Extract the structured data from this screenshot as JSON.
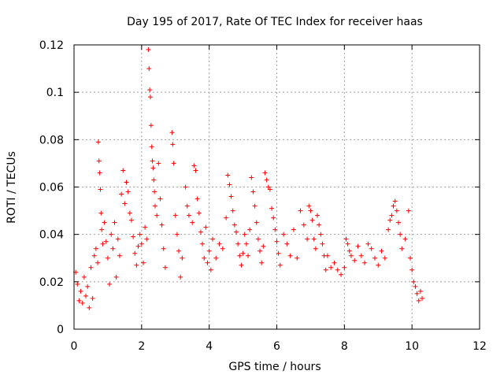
{
  "chart_data": {
    "type": "scatter",
    "title": "Day 195 of 2017, Rate Of TEC Index for receiver haas",
    "xlabel": "GPS time / hours",
    "ylabel": "ROTI / TECUs",
    "xlim": [
      0,
      12
    ],
    "ylim": [
      0,
      0.12
    ],
    "xticks": [
      0,
      2,
      4,
      6,
      8,
      10,
      12
    ],
    "yticks": [
      0,
      0.02,
      0.04,
      0.06,
      0.08,
      0.1,
      0.12
    ],
    "xtick_labels": [
      "0",
      "2",
      "4",
      "6",
      "8",
      "10",
      "12"
    ],
    "ytick_labels": [
      "0",
      "0.02",
      "0.04",
      "0.06",
      "0.08",
      "0.1",
      "0.12"
    ],
    "grid": true,
    "marker": "+",
    "color": "#ff0000",
    "series": [
      {
        "name": "ROTI",
        "points": [
          [
            0.05,
            0.024
          ],
          [
            0.1,
            0.019
          ],
          [
            0.15,
            0.012
          ],
          [
            0.2,
            0.016
          ],
          [
            0.25,
            0.011
          ],
          [
            0.3,
            0.022
          ],
          [
            0.35,
            0.014
          ],
          [
            0.4,
            0.018
          ],
          [
            0.45,
            0.009
          ],
          [
            0.5,
            0.026
          ],
          [
            0.55,
            0.013
          ],
          [
            0.6,
            0.031
          ],
          [
            0.65,
            0.034
          ],
          [
            0.7,
            0.028
          ],
          [
            0.72,
            0.079
          ],
          [
            0.74,
            0.071
          ],
          [
            0.76,
            0.066
          ],
          [
            0.78,
            0.059
          ],
          [
            0.8,
            0.049
          ],
          [
            0.82,
            0.042
          ],
          [
            0.85,
            0.036
          ],
          [
            0.9,
            0.045
          ],
          [
            0.95,
            0.037
          ],
          [
            1.0,
            0.03
          ],
          [
            1.05,
            0.019
          ],
          [
            1.1,
            0.04
          ],
          [
            1.15,
            0.034
          ],
          [
            1.2,
            0.045
          ],
          [
            1.25,
            0.022
          ],
          [
            1.3,
            0.038
          ],
          [
            1.35,
            0.031
          ],
          [
            1.4,
            0.057
          ],
          [
            1.45,
            0.067
          ],
          [
            1.5,
            0.053
          ],
          [
            1.55,
            0.062
          ],
          [
            1.6,
            0.058
          ],
          [
            1.65,
            0.049
          ],
          [
            1.7,
            0.046
          ],
          [
            1.75,
            0.039
          ],
          [
            1.8,
            0.032
          ],
          [
            1.85,
            0.027
          ],
          [
            1.9,
            0.035
          ],
          [
            1.95,
            0.04
          ],
          [
            2.0,
            0.036
          ],
          [
            2.05,
            0.028
          ],
          [
            2.1,
            0.043
          ],
          [
            2.15,
            0.038
          ],
          [
            2.2,
            0.118
          ],
          [
            2.22,
            0.11
          ],
          [
            2.24,
            0.101
          ],
          [
            2.26,
            0.098
          ],
          [
            2.28,
            0.086
          ],
          [
            2.3,
            0.077
          ],
          [
            2.32,
            0.071
          ],
          [
            2.34,
            0.068
          ],
          [
            2.36,
            0.063
          ],
          [
            2.38,
            0.058
          ],
          [
            2.4,
            0.052
          ],
          [
            2.45,
            0.048
          ],
          [
            2.5,
            0.07
          ],
          [
            2.55,
            0.055
          ],
          [
            2.6,
            0.044
          ],
          [
            2.65,
            0.034
          ],
          [
            2.7,
            0.026
          ],
          [
            2.9,
            0.083
          ],
          [
            2.92,
            0.078
          ],
          [
            2.95,
            0.07
          ],
          [
            3.0,
            0.048
          ],
          [
            3.05,
            0.04
          ],
          [
            3.1,
            0.033
          ],
          [
            3.15,
            0.022
          ],
          [
            3.2,
            0.03
          ],
          [
            3.3,
            0.06
          ],
          [
            3.35,
            0.052
          ],
          [
            3.4,
            0.048
          ],
          [
            3.5,
            0.045
          ],
          [
            3.55,
            0.069
          ],
          [
            3.6,
            0.067
          ],
          [
            3.65,
            0.055
          ],
          [
            3.7,
            0.049
          ],
          [
            3.75,
            0.041
          ],
          [
            3.8,
            0.036
          ],
          [
            3.85,
            0.03
          ],
          [
            3.9,
            0.043
          ],
          [
            3.95,
            0.028
          ],
          [
            4.0,
            0.033
          ],
          [
            4.05,
            0.025
          ],
          [
            4.1,
            0.038
          ],
          [
            4.2,
            0.03
          ],
          [
            4.3,
            0.036
          ],
          [
            4.4,
            0.034
          ],
          [
            4.5,
            0.047
          ],
          [
            4.55,
            0.065
          ],
          [
            4.6,
            0.061
          ],
          [
            4.65,
            0.056
          ],
          [
            4.7,
            0.05
          ],
          [
            4.75,
            0.044
          ],
          [
            4.8,
            0.041
          ],
          [
            4.85,
            0.036
          ],
          [
            4.9,
            0.031
          ],
          [
            4.95,
            0.027
          ],
          [
            5.0,
            0.032
          ],
          [
            5.05,
            0.04
          ],
          [
            5.1,
            0.036
          ],
          [
            5.15,
            0.031
          ],
          [
            5.2,
            0.042
          ],
          [
            5.25,
            0.064
          ],
          [
            5.3,
            0.058
          ],
          [
            5.35,
            0.052
          ],
          [
            5.4,
            0.045
          ],
          [
            5.45,
            0.038
          ],
          [
            5.5,
            0.033
          ],
          [
            5.55,
            0.028
          ],
          [
            5.6,
            0.035
          ],
          [
            5.65,
            0.066
          ],
          [
            5.7,
            0.063
          ],
          [
            5.75,
            0.06
          ],
          [
            5.8,
            0.059
          ],
          [
            5.85,
            0.051
          ],
          [
            5.9,
            0.047
          ],
          [
            5.95,
            0.042
          ],
          [
            6.0,
            0.037
          ],
          [
            6.05,
            0.032
          ],
          [
            6.1,
            0.027
          ],
          [
            6.2,
            0.04
          ],
          [
            6.3,
            0.036
          ],
          [
            6.4,
            0.031
          ],
          [
            6.5,
            0.042
          ],
          [
            6.6,
            0.03
          ],
          [
            6.7,
            0.05
          ],
          [
            6.8,
            0.044
          ],
          [
            6.9,
            0.038
          ],
          [
            6.95,
            0.052
          ],
          [
            7.0,
            0.05
          ],
          [
            7.05,
            0.046
          ],
          [
            7.1,
            0.038
          ],
          [
            7.15,
            0.034
          ],
          [
            7.2,
            0.048
          ],
          [
            7.25,
            0.044
          ],
          [
            7.3,
            0.04
          ],
          [
            7.35,
            0.036
          ],
          [
            7.4,
            0.031
          ],
          [
            7.45,
            0.025
          ],
          [
            7.5,
            0.031
          ],
          [
            7.6,
            0.026
          ],
          [
            7.7,
            0.028
          ],
          [
            7.8,
            0.025
          ],
          [
            7.9,
            0.023
          ],
          [
            8.0,
            0.026
          ],
          [
            8.05,
            0.038
          ],
          [
            8.1,
            0.036
          ],
          [
            8.15,
            0.033
          ],
          [
            8.2,
            0.031
          ],
          [
            8.3,
            0.029
          ],
          [
            8.4,
            0.035
          ],
          [
            8.5,
            0.031
          ],
          [
            8.6,
            0.028
          ],
          [
            8.7,
            0.036
          ],
          [
            8.8,
            0.034
          ],
          [
            8.9,
            0.03
          ],
          [
            9.0,
            0.027
          ],
          [
            9.1,
            0.033
          ],
          [
            9.2,
            0.03
          ],
          [
            9.3,
            0.042
          ],
          [
            9.35,
            0.046
          ],
          [
            9.4,
            0.048
          ],
          [
            9.45,
            0.052
          ],
          [
            9.5,
            0.054
          ],
          [
            9.55,
            0.05
          ],
          [
            9.6,
            0.045
          ],
          [
            9.65,
            0.04
          ],
          [
            9.7,
            0.034
          ],
          [
            9.8,
            0.038
          ],
          [
            9.9,
            0.05
          ],
          [
            9.95,
            0.03
          ],
          [
            10.0,
            0.025
          ],
          [
            10.05,
            0.02
          ],
          [
            10.1,
            0.018
          ],
          [
            10.15,
            0.015
          ],
          [
            10.2,
            0.012
          ],
          [
            10.25,
            0.016
          ],
          [
            10.3,
            0.013
          ]
        ]
      }
    ]
  }
}
